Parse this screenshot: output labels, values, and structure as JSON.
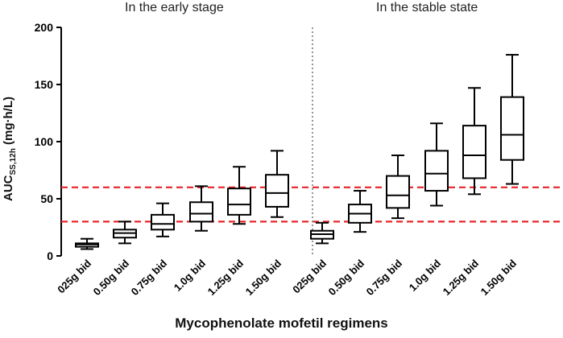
{
  "chart_data": {
    "type": "boxplot",
    "panels": [
      {
        "title": "In the early stage",
        "categories": [
          "025g bid",
          "0.50g bid",
          "0.75g bid",
          "1.0g bid",
          "1.25g bid",
          "1.50g bid"
        ],
        "boxes": [
          {
            "min": 6,
            "q1": 8,
            "median": 10,
            "q3": 11,
            "max": 15
          },
          {
            "min": 11,
            "q1": 16,
            "median": 20,
            "q3": 23,
            "max": 30
          },
          {
            "min": 17,
            "q1": 23,
            "median": 28,
            "q3": 36,
            "max": 46
          },
          {
            "min": 22,
            "q1": 30,
            "median": 37,
            "q3": 47,
            "max": 61
          },
          {
            "min": 28,
            "q1": 36,
            "median": 45,
            "q3": 59,
            "max": 78
          },
          {
            "min": 34,
            "q1": 43,
            "median": 55,
            "q3": 71,
            "max": 92
          }
        ]
      },
      {
        "title": "In the stable state",
        "categories": [
          "025g bid",
          "0.50g bid",
          "0.75g bid",
          "1.0g bid",
          "1.25g bid",
          "1.50g bid"
        ],
        "boxes": [
          {
            "min": 11,
            "q1": 15,
            "median": 19,
            "q3": 22,
            "max": 29
          },
          {
            "min": 21,
            "q1": 29,
            "median": 37,
            "q3": 45,
            "max": 57
          },
          {
            "min": 33,
            "q1": 42,
            "median": 53,
            "q3": 70,
            "max": 88
          },
          {
            "min": 44,
            "q1": 57,
            "median": 72,
            "q3": 92,
            "max": 116
          },
          {
            "min": 54,
            "q1": 68,
            "median": 88,
            "q3": 114,
            "max": 147
          },
          {
            "min": 63,
            "q1": 84,
            "median": 106,
            "q3": 139,
            "max": 176
          }
        ]
      }
    ],
    "reference_lines": [
      30,
      60
    ],
    "ylim": [
      0,
      200
    ],
    "yticks": [
      0,
      50,
      100,
      150,
      200
    ],
    "xlabel": "Mycophenolate mofetil regimens",
    "ylabel_main": "AUC",
    "ylabel_sub": "SS,12h",
    "ylabel_unit": " (mg·h/L)",
    "colors": {
      "box": "#000000",
      "reference": "#e8252a",
      "divider": "#8a8a8a"
    }
  }
}
